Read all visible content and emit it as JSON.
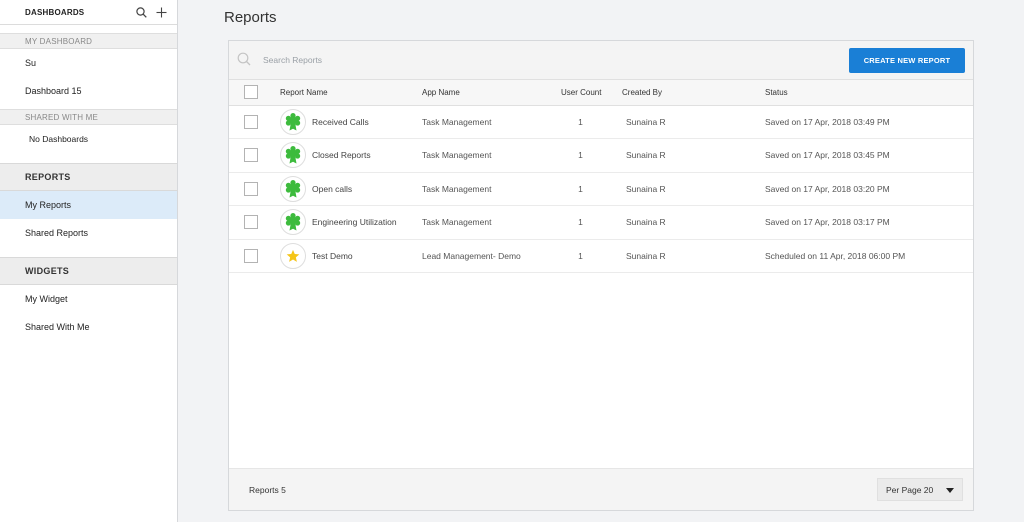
{
  "sidebar": {
    "title": "DASHBOARDS",
    "my_dashboard": {
      "heading": "MY DASHBOARD",
      "items": [
        "Su",
        "Dashboard 15"
      ]
    },
    "shared_with_me": {
      "heading": "SHARED WITH ME",
      "empty": "No Dashboards"
    },
    "reports": {
      "heading": "REPORTS",
      "items": [
        "My Reports",
        "Shared Reports"
      ]
    },
    "widgets": {
      "heading": "WIDGETS",
      "items": [
        "My Widget",
        "Shared With Me"
      ]
    }
  },
  "page": {
    "title": "Reports"
  },
  "toolbar": {
    "search_placeholder": "Search Reports",
    "create_label": "CREATE NEW REPORT",
    "accent": "#1a7fd6"
  },
  "table": {
    "columns": [
      "Report Name",
      "App Name",
      "User Count",
      "Created By",
      "Status"
    ],
    "rows": [
      {
        "name": "Received Calls",
        "app": "Task Management",
        "count": "1",
        "created_by": "Sunaina R",
        "status": "Saved on 17 Apr, 2018 03:49 PM",
        "icon": "badge-icon"
      },
      {
        "name": "Closed Reports",
        "app": "Task Management",
        "count": "1",
        "created_by": "Sunaina R",
        "status": "Saved on 17 Apr, 2018 03:45 PM",
        "icon": "badge-icon"
      },
      {
        "name": "Open calls",
        "app": "Task Management",
        "count": "1",
        "created_by": "Sunaina R",
        "status": "Saved on 17 Apr, 2018 03:20 PM",
        "icon": "badge-icon"
      },
      {
        "name": "Engineering Utilization",
        "app": "Task Management",
        "count": "1",
        "created_by": "Sunaina R",
        "status": "Saved on 17 Apr, 2018 03:17 PM",
        "icon": "badge-icon"
      },
      {
        "name": "Test Demo",
        "app": "Lead Management- Demo",
        "count": "1",
        "created_by": "Sunaina R",
        "status": "Scheduled on 11 Apr, 2018 06:00 PM",
        "icon": "star-icon"
      }
    ]
  },
  "footer": {
    "count_label": "Reports 5",
    "per_page_label": "Per Page 20"
  },
  "colors": {
    "badge_green": "#3dbb3d",
    "star_yellow": "#f5c518",
    "active_item": "#dcebf9"
  }
}
